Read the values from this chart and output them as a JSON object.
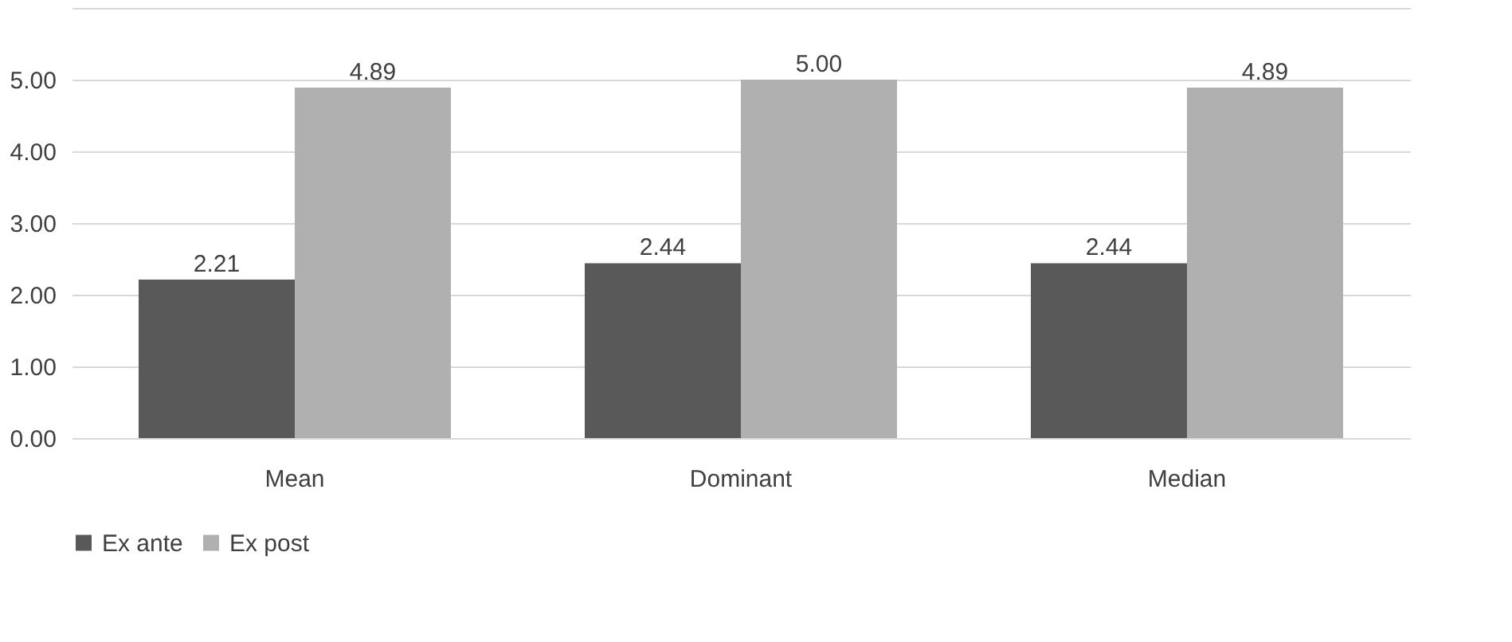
{
  "chart_data": {
    "type": "bar",
    "categories": [
      "Mean",
      "Dominant",
      "Median"
    ],
    "series": [
      {
        "name": "Ex ante",
        "color": "#595959",
        "values": [
          2.21,
          2.44,
          2.44
        ],
        "value_labels": [
          "2.21",
          "2.44",
          "2.44"
        ]
      },
      {
        "name": "Ex post",
        "color": "#b0b0b0",
        "values": [
          4.89,
          5.0,
          4.89
        ],
        "value_labels": [
          "4.89",
          "5.00",
          "4.89"
        ]
      }
    ],
    "ylim": [
      0,
      6
    ],
    "yticks": [
      {
        "value": 0,
        "label": "0.00"
      },
      {
        "value": 1,
        "label": "1.00"
      },
      {
        "value": 2,
        "label": "2.00"
      },
      {
        "value": 3,
        "label": "3.00"
      },
      {
        "value": 4,
        "label": "4.00"
      },
      {
        "value": 5,
        "label": "5.00"
      },
      {
        "value": 6,
        "label": null
      }
    ],
    "grid": "y",
    "legend": "bottom"
  }
}
